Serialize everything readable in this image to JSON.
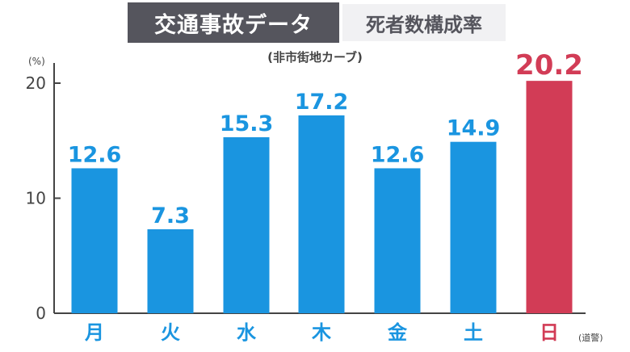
{
  "chart_data": {
    "type": "bar",
    "title": "交通事故データ",
    "subtitle": "死者数構成率",
    "note": "(非市街地カーブ)",
    "unit": "(%)",
    "source": "(道警)",
    "categories": [
      "月",
      "火",
      "水",
      "木",
      "金",
      "土",
      "日"
    ],
    "values": [
      12.6,
      7.3,
      15.3,
      17.2,
      12.6,
      14.9,
      20.2
    ],
    "value_labels": [
      "12.6",
      "7.3",
      "15.3",
      "17.2",
      "12.6",
      "14.9",
      "20.2"
    ],
    "highlight_index": 6,
    "ylim": [
      0,
      20
    ],
    "yticks": [
      "0",
      "10",
      "20"
    ],
    "grid": false,
    "colors": {
      "bar": "#1a95e0",
      "highlight": "#d23c56",
      "axis": "#444444"
    }
  }
}
